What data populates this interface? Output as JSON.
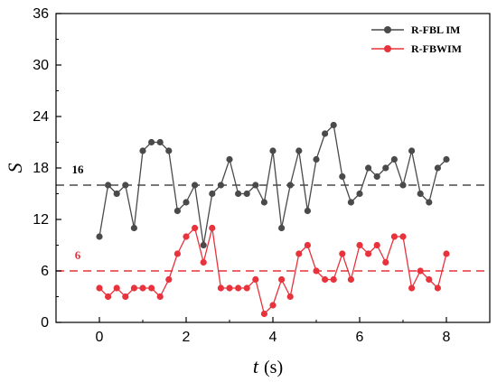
{
  "chart_data": {
    "type": "line",
    "xlabel": "t",
    "xunit": "(s)",
    "ylabel": "S",
    "xlim": [
      -1,
      9
    ],
    "ylim": [
      0,
      36
    ],
    "xticks": [
      "0",
      "2",
      "4",
      "6",
      "8"
    ],
    "yticks": [
      "0",
      "6",
      "12",
      "18",
      "24",
      "30",
      "36"
    ],
    "legend_position": "top-right",
    "series": [
      {
        "name": "R-FBL IM",
        "color": "#4a4a4a",
        "x": [
          0,
          0.2,
          0.4,
          0.6,
          0.8,
          1.0,
          1.2,
          1.4,
          1.6,
          1.8,
          2.0,
          2.2,
          2.4,
          2.6,
          2.8,
          3.0,
          3.2,
          3.4,
          3.6,
          3.8,
          4.0,
          4.2,
          4.4,
          4.6,
          4.8,
          5.0,
          5.2,
          5.4,
          5.6,
          5.8,
          6.0,
          6.2,
          6.4,
          6.6,
          6.8,
          7.0,
          7.2,
          7.4,
          7.6,
          7.8,
          8.0
        ],
        "y": [
          10,
          16,
          15,
          16,
          11,
          20,
          21,
          21,
          20,
          13,
          14,
          16,
          9,
          15,
          16,
          19,
          15,
          15,
          16,
          14,
          20,
          11,
          16,
          20,
          13,
          19,
          22,
          23,
          17,
          14,
          15,
          18,
          17,
          18,
          19,
          16,
          20,
          15,
          14,
          18,
          19
        ]
      },
      {
        "name": "R-FBWIM",
        "color": "#e8323c",
        "x": [
          0,
          0.2,
          0.4,
          0.6,
          0.8,
          1.0,
          1.2,
          1.4,
          1.6,
          1.8,
          2.0,
          2.2,
          2.4,
          2.6,
          2.8,
          3.0,
          3.2,
          3.4,
          3.6,
          3.8,
          4.0,
          4.2,
          4.4,
          4.6,
          4.8,
          5.0,
          5.2,
          5.4,
          5.6,
          5.8,
          6.0,
          6.2,
          6.4,
          6.6,
          6.8,
          7.0,
          7.2,
          7.4,
          7.6,
          7.8,
          8.0
        ],
        "y": [
          4,
          3,
          4,
          3,
          4,
          4,
          4,
          3,
          5,
          8,
          10,
          11,
          7,
          11,
          4,
          4,
          4,
          4,
          5,
          1,
          2,
          5,
          3,
          8,
          9,
          6,
          5,
          5,
          8,
          5,
          9,
          8,
          9,
          7,
          10,
          10,
          4,
          6,
          5,
          4,
          8
        ]
      }
    ],
    "reference_lines": [
      {
        "value": 16,
        "label": "16",
        "color": "#4a4a4a"
      },
      {
        "value": 6,
        "label": "6",
        "color": "#e8323c"
      }
    ]
  }
}
